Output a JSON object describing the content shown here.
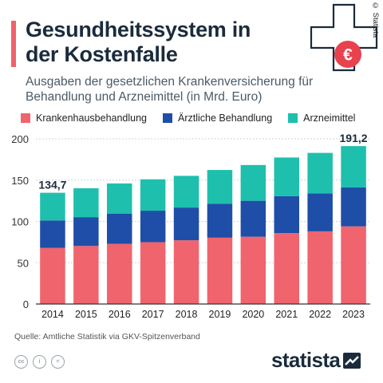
{
  "header": {
    "title": "Gesundheitssystem in der Kostenfalle",
    "subtitle": "Ausgaben der gesetzlichen Krankenversicherung für Behandlung und Arzneimittel (in Mrd. Euro)",
    "copyright": "© Statista",
    "euro_symbol": "€"
  },
  "colors": {
    "accent": "#f0616a",
    "krankenhaus": "#f0646d",
    "aerztlich": "#1f4ea8",
    "arznei": "#1ec0ad",
    "text": "#1b2b3c",
    "grid": "#cfd4d8"
  },
  "chart_data": {
    "type": "bar",
    "stacked": true,
    "categories": [
      "2014",
      "2015",
      "2016",
      "2017",
      "2018",
      "2019",
      "2020",
      "2021",
      "2022",
      "2023"
    ],
    "series": [
      {
        "name": "Krankenhausbehandlung",
        "values": [
          67.9,
          70.3,
          72.9,
          74.9,
          77.2,
          80.3,
          81.5,
          85.9,
          88.0,
          94.0
        ]
      },
      {
        "name": "Ärztliche Behandlung",
        "values": [
          33.3,
          34.9,
          36.6,
          38.1,
          39.6,
          41.0,
          43.5,
          44.8,
          46.0,
          47.1
        ]
      },
      {
        "name": "Arzneimittel",
        "values": [
          33.5,
          35.0,
          36.5,
          38.0,
          38.4,
          41.0,
          43.3,
          46.7,
          49.0,
          50.1
        ]
      }
    ],
    "data_labels": [
      {
        "category": "2014",
        "text": "134,7"
      },
      {
        "category": "2023",
        "text": "191,2"
      }
    ],
    "y_ticks": [
      0,
      50,
      100,
      150,
      200
    ],
    "ylim": [
      0,
      200
    ],
    "grid": true,
    "legend_position": "top"
  },
  "footer": {
    "source": "Quelle: Amtliche Statistik via GKV-Spitzenverband",
    "license_icons": [
      "cc",
      "i",
      "="
    ],
    "brand": "statista"
  }
}
